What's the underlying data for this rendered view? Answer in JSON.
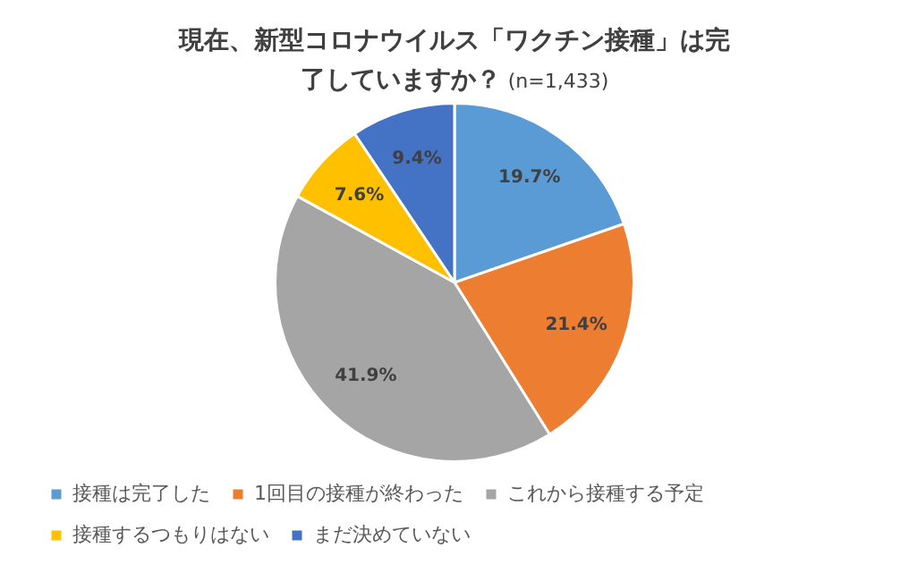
{
  "chart_data": {
    "type": "pie",
    "title": "現在、新型コロナウイルス「ワクチン接種」は完了していますか？",
    "subtitle": "(n=1,433)",
    "categories": [
      "接種は完了した",
      "1回目の接種が終わった",
      "これから接種する予定",
      "接種するつもりはない",
      "まだ決めていない"
    ],
    "values": [
      19.7,
      21.4,
      41.9,
      7.6,
      9.4
    ],
    "colors": [
      "#5b9bd5",
      "#ed7d31",
      "#a5a5a5",
      "#ffc000",
      "#4472c4"
    ],
    "value_labels": [
      "19.7%",
      "21.4%",
      "41.9%",
      "7.6%",
      "9.4%"
    ],
    "legend": "bottom"
  }
}
